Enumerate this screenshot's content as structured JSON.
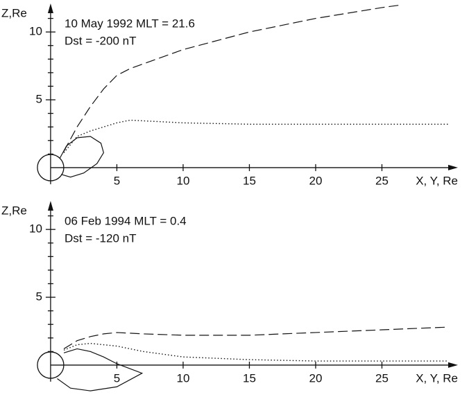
{
  "chart_data": [
    {
      "type": "line",
      "annotations": [
        "10 May 1992 MLT = 21.6",
        "Dst = -200 nT"
      ],
      "y_label": "Z,Re",
      "x_label": "X, Y, Re",
      "xlim": [
        -1.2,
        30
      ],
      "ylim": [
        -2.2,
        12
      ],
      "xticks": [
        5,
        10,
        15,
        20,
        25
      ],
      "yticks": [
        5,
        10
      ],
      "yminorticks": [
        1,
        2,
        3,
        4,
        6,
        7,
        8,
        9,
        11
      ],
      "series": [
        {
          "style": "dashed",
          "color": "#111",
          "x": [
            1,
            2,
            3,
            4,
            5,
            6,
            8,
            10,
            15,
            20,
            25,
            26.5
          ],
          "values": [
            1.2,
            3,
            4.5,
            5.8,
            6.8,
            7.3,
            8,
            8.7,
            10,
            11,
            11.8,
            12
          ]
        },
        {
          "style": "dotted",
          "color": "#111",
          "x": [
            1,
            2,
            3,
            4,
            5,
            6,
            8,
            10,
            15,
            20,
            25,
            30
          ],
          "values": [
            1.1,
            2.3,
            2.7,
            3,
            3.3,
            3.5,
            3.4,
            3.3,
            3.2,
            3.2,
            3.2,
            3.2
          ]
        },
        {
          "style": "solid",
          "color": "#111",
          "x": [
            0.7,
            1.2,
            2,
            3,
            3.8,
            4,
            3.5,
            2.5,
            1.5,
            0.8
          ],
          "values": [
            0.7,
            1.6,
            2.2,
            2.3,
            1.8,
            1.1,
            0.3,
            -0.4,
            -0.7,
            -0.5
          ]
        }
      ]
    },
    {
      "type": "line",
      "annotations": [
        "06 Feb 1994 MLT = 0.4",
        "Dst = -120 nT"
      ],
      "y_label": "Z,Re",
      "x_label": "X, Y, Re",
      "xlim": [
        -1.2,
        30
      ],
      "ylim": [
        -2.2,
        12
      ],
      "xticks": [
        5,
        10,
        15,
        20,
        25
      ],
      "yticks": [
        5,
        10
      ],
      "yminorticks": [
        1,
        2,
        3,
        4,
        6,
        7,
        8,
        9,
        11
      ],
      "series": [
        {
          "style": "dashed",
          "color": "#111",
          "x": [
            1,
            2,
            3,
            4,
            5,
            7,
            10,
            15,
            20,
            25,
            30
          ],
          "values": [
            1.2,
            1.8,
            2.1,
            2.3,
            2.4,
            2.3,
            2.2,
            2.2,
            2.4,
            2.6,
            2.8
          ]
        },
        {
          "style": "dotted",
          "color": "#111",
          "x": [
            1,
            2,
            3,
            5,
            7,
            10,
            15,
            20,
            25,
            30
          ],
          "values": [
            1.1,
            1.5,
            1.6,
            1.4,
            1,
            0.6,
            0.4,
            0.3,
            0.3,
            0.3
          ]
        },
        {
          "style": "solid",
          "color": "#111",
          "x": [
            1,
            2,
            3,
            4,
            5,
            6.9,
            5,
            3,
            1.5,
            0.5
          ],
          "values": [
            0.9,
            1.2,
            1,
            0.6,
            0.1,
            -0.6,
            -1.6,
            -1.9,
            -1.7,
            -1
          ]
        }
      ]
    }
  ]
}
